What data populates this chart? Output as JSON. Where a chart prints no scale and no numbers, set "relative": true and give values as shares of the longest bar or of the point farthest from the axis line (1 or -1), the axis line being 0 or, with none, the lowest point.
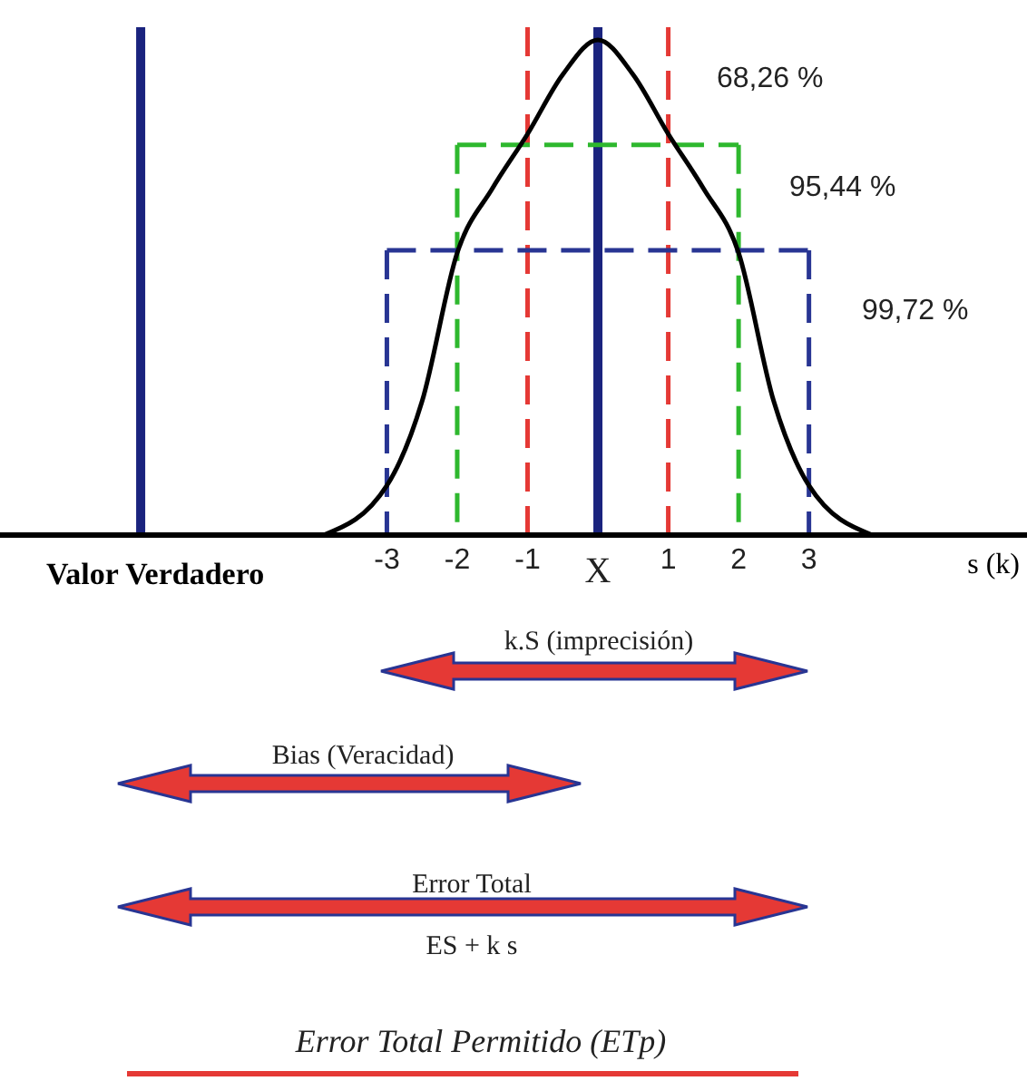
{
  "chart_data": {
    "type": "line",
    "relative": true,
    "xlabel": "s (k)",
    "x": [
      -3.9,
      -3,
      -2.5,
      -2,
      -1.5,
      -1,
      -0.5,
      0,
      0.5,
      1,
      1.5,
      2,
      2.5,
      3,
      3.9
    ],
    "series": [
      {
        "color": "#000000",
        "values": [
          0,
          0.1,
          0.27,
          0.57,
          0.7,
          0.81,
          0.93,
          1,
          0.93,
          0.81,
          0.7,
          0.57,
          0.27,
          0.1,
          0
        ]
      }
    ],
    "xlim": [
      -8.5,
      6.1
    ],
    "xticks": [
      -3,
      -2,
      -1,
      {
        "value": 0,
        "label": "X"
      },
      1,
      2,
      3
    ],
    "ref_lines": [
      {
        "axis": "x",
        "value": 0,
        "color": "#1a237e",
        "line_style": "solid"
      },
      {
        "axis": "x",
        "value": -6.5,
        "label": "Valor Verdadero",
        "color": "#1a237e",
        "line_style": "solid"
      },
      {
        "axis": "x",
        "value": -1,
        "color": "#e53935",
        "line_style": "dashed"
      },
      {
        "axis": "x",
        "value": 1,
        "color": "#e53935",
        "line_style": "dashed"
      },
      {
        "axis": "x",
        "value": -2,
        "color": "#2eb82e",
        "line_style": "dashed"
      },
      {
        "axis": "x",
        "value": 2,
        "color": "#2eb82e",
        "line_style": "dashed"
      },
      {
        "axis": "x",
        "value": -3,
        "color": "#283593",
        "line_style": "dashed"
      },
      {
        "axis": "x",
        "value": 3,
        "color": "#283593",
        "line_style": "dashed"
      },
      {
        "axis": "y",
        "value": 0.788,
        "color": "#2eb82e",
        "line_style": "dashed"
      },
      {
        "axis": "y",
        "value": 0.575,
        "color": "#283593",
        "line_style": "dashed"
      }
    ],
    "annotations": [
      "68,26 %",
      "95,44 %",
      "99,72 %",
      "k.S (imprecisión)",
      "Bias (Veracidad)",
      "Error Total",
      "ES + k s",
      "Error Total Permitido (ETp)"
    ]
  }
}
